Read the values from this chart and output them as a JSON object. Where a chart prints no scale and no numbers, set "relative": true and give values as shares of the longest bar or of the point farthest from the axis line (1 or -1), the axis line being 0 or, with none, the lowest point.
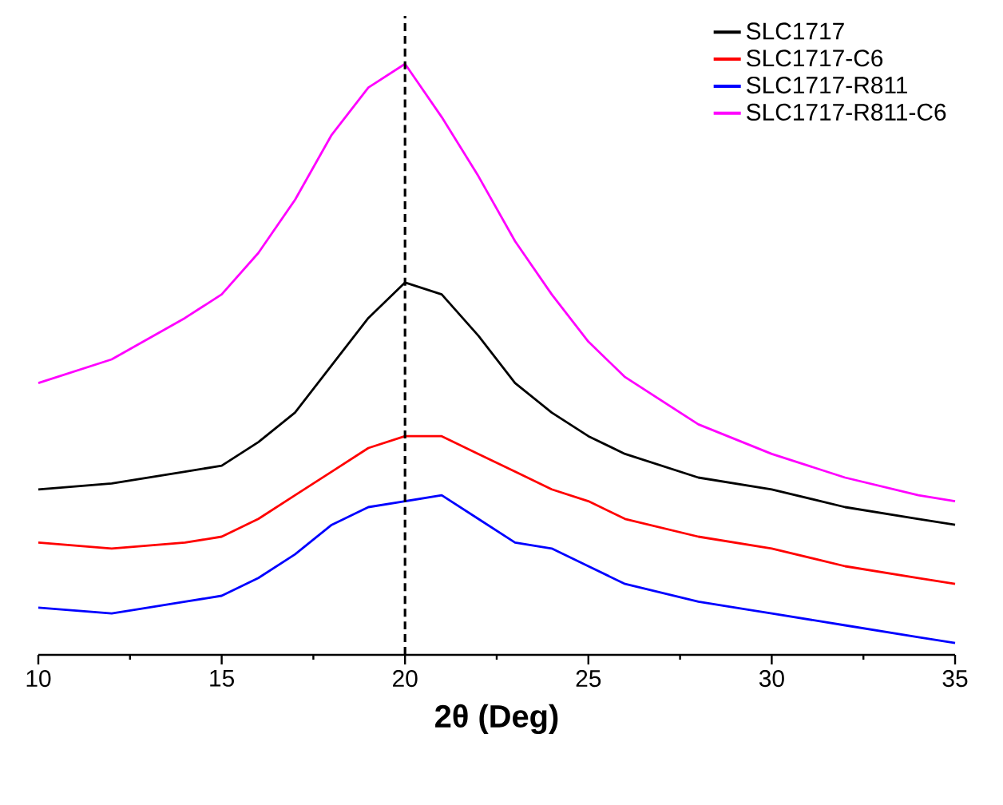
{
  "chart_data": {
    "type": "line",
    "relative": true,
    "xlabel": "2θ (Deg)",
    "x": [
      10,
      12,
      14,
      15,
      16,
      17,
      18,
      19,
      20,
      21,
      22,
      23,
      24,
      25,
      26,
      28,
      30,
      32,
      34,
      35
    ],
    "xlim": [
      10,
      35
    ],
    "xticks": [
      10,
      15,
      20,
      25,
      30,
      35
    ],
    "legend": "top right",
    "marker": "none",
    "line_style": "solid",
    "grid": false,
    "series": [
      {
        "name": "SLC1717",
        "color": "#000000",
        "values": [
          0.28,
          0.29,
          0.31,
          0.32,
          0.36,
          0.41,
          0.49,
          0.57,
          0.63,
          0.61,
          0.54,
          0.46,
          0.41,
          0.37,
          0.34,
          0.3,
          0.28,
          0.25,
          0.23,
          0.22
        ]
      },
      {
        "name": "SLC1717-C6",
        "color": "#ff0000",
        "values": [
          0.19,
          0.18,
          0.19,
          0.2,
          0.23,
          0.27,
          0.31,
          0.35,
          0.37,
          0.37,
          0.34,
          0.31,
          0.28,
          0.26,
          0.23,
          0.2,
          0.18,
          0.15,
          0.13,
          0.12
        ]
      },
      {
        "name": "SLC1717-R811",
        "color": "#0000ff",
        "values": [
          0.08,
          0.07,
          0.09,
          0.1,
          0.13,
          0.17,
          0.22,
          0.25,
          0.26,
          0.27,
          0.23,
          0.19,
          0.18,
          0.15,
          0.12,
          0.09,
          0.07,
          0.05,
          0.03,
          0.02
        ]
      },
      {
        "name": "SLC1717-R811-C6",
        "color": "#ff00ff",
        "values": [
          0.46,
          0.5,
          0.57,
          0.61,
          0.68,
          0.77,
          0.88,
          0.96,
          1.0,
          0.91,
          0.81,
          0.7,
          0.61,
          0.53,
          0.47,
          0.39,
          0.34,
          0.3,
          0.27,
          0.26
        ]
      }
    ],
    "ref_lines": [
      {
        "axis": "x",
        "value": 20,
        "color": "#000000",
        "line_style": "dashed"
      }
    ]
  }
}
